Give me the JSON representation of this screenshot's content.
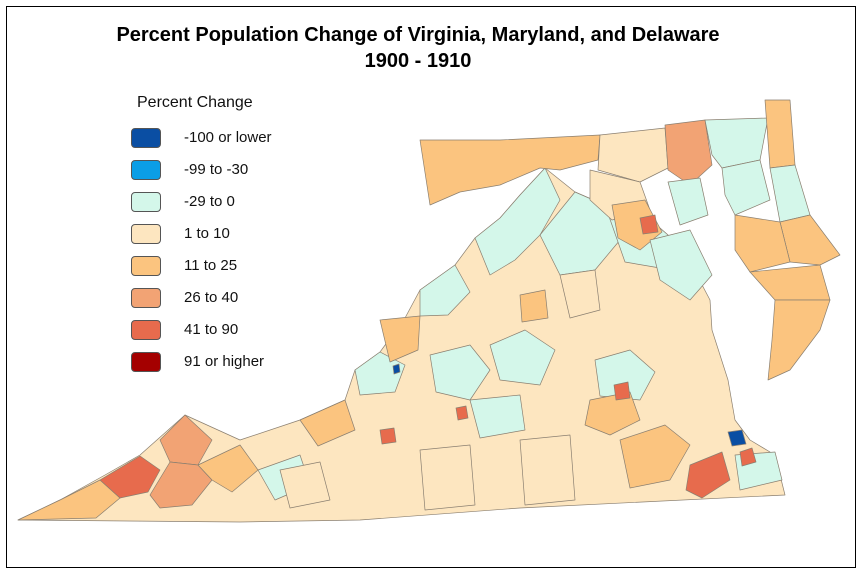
{
  "title": {
    "line1": "Percent Population Change of Virginia, Maryland, and Delaware",
    "line2": "1900 - 1910"
  },
  "legend": {
    "title": "Percent Change",
    "items": [
      {
        "label": "-100 or lower",
        "color": "#0a4ea3"
      },
      {
        "label": "-99 to -30",
        "color": "#0b9ee6"
      },
      {
        "label": "-29 to 0",
        "color": "#d4f7ea"
      },
      {
        "label": "1 to 10",
        "color": "#fde6c0"
      },
      {
        "label": "11 to 25",
        "color": "#fbc47f"
      },
      {
        "label": "26 to 40",
        "color": "#f2a374"
      },
      {
        "label": "41 to 90",
        "color": "#e76b4d"
      },
      {
        "label": "91 or higher",
        "color": "#a40000"
      }
    ]
  }
}
